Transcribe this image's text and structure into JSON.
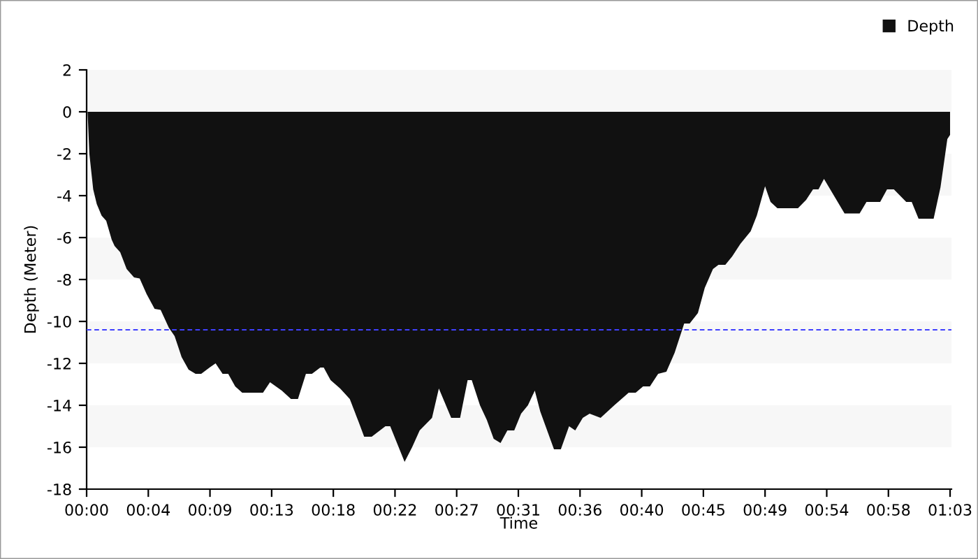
{
  "chart_data": {
    "type": "area",
    "xlabel": "Time",
    "ylabel": "Depth (Meter)",
    "legend": "top right",
    "x": [
      0,
      0.07,
      0.2,
      0.48,
      0.74,
      1.09,
      1.43,
      1.83,
      2.04,
      2.45,
      2.92,
      3.46,
      3.87,
      4.38,
      4.96,
      5.4,
      6.0,
      6.42,
      6.93,
      7.44,
      7.95,
      8.36,
      8.97,
      9.41,
      9.92,
      10.33,
      10.84,
      11.35,
      12.87,
      13.38,
      14.24,
      14.91,
      15.42,
      16.0,
      16.44,
      17.05,
      17.3,
      17.8,
      18.5,
      19.2,
      19.85,
      20.25,
      20.8,
      21.8,
      22.15,
      23.2,
      23.75,
      24.3,
      25.2,
      25.7,
      26.6,
      27.25,
      27.8,
      28.1,
      28.7,
      29.2,
      29.7,
      30.2,
      30.7,
      31.2,
      31.7,
      32.2,
      32.7,
      33.1,
      34.1,
      34.6,
      35.2,
      35.65,
      36.2,
      36.7,
      37.5,
      38.5,
      39.55,
      40.06,
      40.6,
      41.1,
      41.7,
      42.3,
      42.9,
      43.6,
      44.0,
      44.6,
      45.1,
      45.7,
      46.1,
      46.6,
      47.1,
      47.7,
      48.45,
      48.9,
      49.5,
      49.9,
      50.4,
      51.9,
      52.5,
      53.0,
      53.4,
      53.8,
      55.3,
      56.4,
      56.9,
      57.9,
      58.4,
      58.9,
      59.8,
      60.2,
      60.7,
      61.8,
      62.3,
      62.8,
      63.0
    ],
    "series": [
      {
        "name": "Depth",
        "color": "#111111",
        "values": [
          0,
          0,
          -2.0,
          -3.7,
          -4.4,
          -4.95,
          -5.2,
          -6.1,
          -6.4,
          -6.7,
          -7.5,
          -7.9,
          -7.95,
          -8.7,
          -9.4,
          -9.45,
          -10.3,
          -10.7,
          -11.7,
          -12.3,
          -12.5,
          -12.5,
          -12.2,
          -12.0,
          -12.5,
          -12.5,
          -13.1,
          -13.4,
          -13.4,
          -12.9,
          -13.3,
          -13.7,
          -13.7,
          -12.5,
          -12.5,
          -12.2,
          -12.2,
          -12.8,
          -13.2,
          -13.7,
          -14.8,
          -15.5,
          -15.5,
          -15.0,
          -15.0,
          -16.7,
          -16.0,
          -15.2,
          -14.6,
          -13.2,
          -14.6,
          -14.6,
          -12.8,
          -12.8,
          -14.0,
          -14.7,
          -15.6,
          -15.8,
          -15.2,
          -15.2,
          -14.4,
          -14.0,
          -13.3,
          -14.3,
          -16.1,
          -16.1,
          -15.0,
          -15.2,
          -14.6,
          -14.4,
          -14.6,
          -14.0,
          -13.4,
          -13.4,
          -13.1,
          -13.1,
          -12.5,
          -12.4,
          -11.5,
          -10.1,
          -10.1,
          -9.6,
          -8.4,
          -7.5,
          -7.3,
          -7.3,
          -6.9,
          -6.3,
          -5.7,
          -4.95,
          -3.55,
          -4.3,
          -4.6,
          -4.6,
          -4.2,
          -3.7,
          -3.7,
          -3.2,
          -4.85,
          -4.85,
          -4.3,
          -4.3,
          -3.7,
          -3.7,
          -4.3,
          -4.3,
          -5.1,
          -5.1,
          -3.6,
          -1.3,
          -1.1
        ]
      }
    ],
    "xlim": [
      0,
      63.1
    ],
    "xticks": [
      {
        "value": 0,
        "label": "00:00"
      },
      {
        "value": 4.5,
        "label": "00:04"
      },
      {
        "value": 9,
        "label": "00:09"
      },
      {
        "value": 13.5,
        "label": "00:13"
      },
      {
        "value": 18,
        "label": "00:18"
      },
      {
        "value": 22.5,
        "label": "00:22"
      },
      {
        "value": 27,
        "label": "00:27"
      },
      {
        "value": 31.5,
        "label": "00:31"
      },
      {
        "value": 36,
        "label": "00:36"
      },
      {
        "value": 40.5,
        "label": "00:40"
      },
      {
        "value": 45,
        "label": "00:45"
      },
      {
        "value": 49.5,
        "label": "00:49"
      },
      {
        "value": 54,
        "label": "00:54"
      },
      {
        "value": 58.5,
        "label": "00:58"
      },
      {
        "value": 63,
        "label": "01:03"
      }
    ],
    "ylim": [
      -18,
      2
    ],
    "yticks": [
      -18,
      -16,
      -14,
      -12,
      -10,
      -8,
      -6,
      -4,
      -2,
      0,
      2
    ],
    "grid": false,
    "bands": [
      {
        "axis": "y",
        "from": 0,
        "to": 2,
        "color": "#f7f7f7"
      },
      {
        "axis": "y",
        "from": -4,
        "to": -2,
        "color": "#f7f7f7"
      },
      {
        "axis": "y",
        "from": -8,
        "to": -6,
        "color": "#f7f7f7"
      },
      {
        "axis": "y",
        "from": -12,
        "to": -10,
        "color": "#f7f7f7"
      },
      {
        "axis": "y",
        "from": -16,
        "to": -14,
        "color": "#f7f7f7"
      }
    ],
    "ref_lines": [
      {
        "axis": "y",
        "value": -10.4,
        "color": "#4040ff",
        "line_style": "dashed"
      }
    ]
  }
}
